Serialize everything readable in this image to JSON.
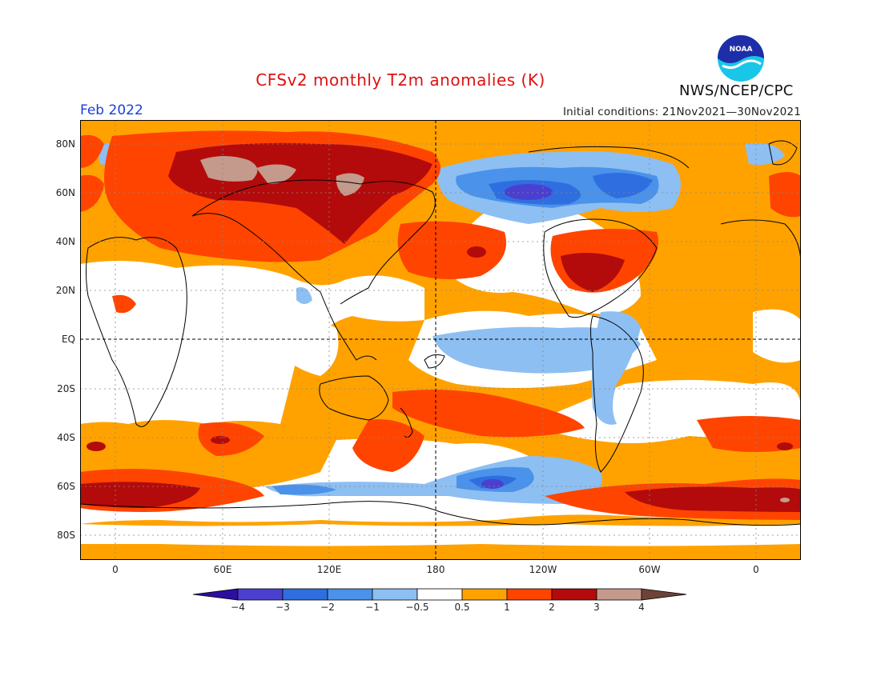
{
  "header": {
    "title": "CFSv2 monthly T2m anomalies (K)",
    "period": "Feb 2022",
    "initial_conditions": "Initial conditions: 21Nov2021—30Nov2021",
    "agency": "NWS/NCEP/CPC",
    "logo_text": "NOAA"
  },
  "axes": {
    "lat_labels": [
      "80N",
      "60N",
      "40N",
      "20N",
      "EQ",
      "20S",
      "40S",
      "60S",
      "80S"
    ],
    "lon_labels": [
      "0",
      "60E",
      "120E",
      "180",
      "120W",
      "60W",
      "0"
    ]
  },
  "colorbar": {
    "labels": [
      "−4",
      "−3",
      "−2",
      "−1",
      "−0.5",
      "0.5",
      "1",
      "2",
      "3",
      "4"
    ],
    "colors": [
      "#2b0f9e",
      "#4b3fd0",
      "#2f6ee0",
      "#4a92ea",
      "#8dbff2",
      "#ffffff",
      "#ffa200",
      "#ff4400",
      "#b30b0b",
      "#c49a8c",
      "#6e4335"
    ]
  },
  "legend_colors": {
    "warm_1": "#ffa200",
    "warm_2": "#ff4400",
    "warm_3": "#b30b0b",
    "warm_4": "#c49a8c",
    "cold_1": "#8dbff2",
    "cold_2": "#4a92ea",
    "cold_3": "#2f6ee0",
    "cold_4": "#4b3fd0"
  }
}
